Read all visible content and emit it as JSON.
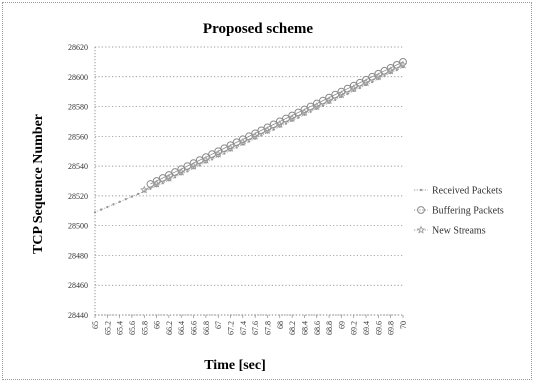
{
  "chart_data": {
    "type": "line",
    "title": "Proposed scheme",
    "xlabel": "Time [sec]",
    "ylabel": "TCP Sequence Number",
    "xlim": [
      65,
      70
    ],
    "ylim": [
      28440,
      28620
    ],
    "y_ticks": [
      "28620",
      "28600",
      "28580",
      "28560",
      "28540",
      "28520",
      "28500",
      "28480",
      "28460",
      "28440"
    ],
    "x_ticks": [
      "65",
      "65.2",
      "65.4",
      "65.6",
      "65.8",
      "66",
      "66.2",
      "66.4",
      "66.6",
      "66.8",
      "67",
      "67.2",
      "67.4",
      "67.6",
      "67.8",
      "68",
      "68.2",
      "68.4",
      "68.6",
      "68.8",
      "69",
      "69.2",
      "69.4",
      "69.6",
      "69.8",
      "70"
    ],
    "grid": "dotted horizontal",
    "legend_position": "right",
    "series": [
      {
        "name": "Received Packets",
        "marker": "small-dot",
        "color": "#9a9a9a",
        "x": [
          65,
          65.1,
          65.2,
          65.3,
          65.4,
          65.5,
          65.6,
          65.7,
          65.8,
          65.9,
          66,
          66.1,
          66.2,
          66.3,
          66.4,
          66.5,
          66.6,
          66.7,
          66.8,
          66.9,
          67,
          67.1,
          67.2,
          67.3,
          67.4,
          67.5,
          67.6,
          67.7,
          67.8,
          67.9,
          68,
          68.1,
          68.2,
          68.3,
          68.4,
          68.5,
          68.6,
          68.7,
          68.8,
          68.9,
          69,
          69.1,
          69.2,
          69.3,
          69.4,
          69.5,
          69.6,
          69.7,
          69.8,
          69.9,
          70
        ],
        "y": [
          28509,
          28510.8,
          28512.5,
          28514.3,
          28516,
          28517.8,
          28519.5,
          28521.3,
          28523,
          28524.8,
          28526.5,
          28528.5,
          28530.5,
          28532.5,
          28534.5,
          28536.5,
          28538.5,
          28540.5,
          28542.5,
          28544.5,
          28546.5,
          28548.5,
          28550.5,
          28552.5,
          28554.5,
          28556.5,
          28558.5,
          28560.5,
          28562.5,
          28564.5,
          28566.5,
          28568.5,
          28570.5,
          28572.5,
          28574.5,
          28576.5,
          28578.5,
          28580.5,
          28582.5,
          28584.5,
          28586.5,
          28588.5,
          28590.5,
          28592.5,
          28594.5,
          28596.5,
          28598.5,
          28600.5,
          28602.5,
          28604.5,
          28606.5
        ]
      },
      {
        "name": "Buffering Packets",
        "marker": "circle",
        "color": "#8a8a8a",
        "x": [
          65.9,
          66,
          66.1,
          66.2,
          66.3,
          66.4,
          66.5,
          66.6,
          66.7,
          66.8,
          66.9,
          67,
          67.1,
          67.2,
          67.3,
          67.4,
          67.5,
          67.6,
          67.7,
          67.8,
          67.9,
          68,
          68.1,
          68.2,
          68.3,
          68.4,
          68.5,
          68.6,
          68.7,
          68.8,
          68.9,
          69,
          69.1,
          69.2,
          69.3,
          69.4,
          69.5,
          69.6,
          69.7,
          69.8,
          69.9,
          70
        ],
        "y": [
          28528,
          28530,
          28532,
          28534,
          28536,
          28538,
          28540,
          28542,
          28544,
          28546,
          28548,
          28550,
          28552,
          28554,
          28556,
          28558,
          28560,
          28562,
          28564,
          28566,
          28568,
          28570,
          28572,
          28574,
          28576,
          28578,
          28580,
          28582,
          28584,
          28586,
          28588,
          28590,
          28592,
          28594,
          28596,
          28598,
          28600,
          28602,
          28604,
          28606,
          28608,
          28610
        ]
      },
      {
        "name": "New Streams",
        "marker": "star",
        "color": "#9a9a9a",
        "x": [
          65.8,
          66,
          66.2,
          66.4,
          66.6,
          66.8,
          67,
          67.2,
          67.4,
          67.6,
          67.8,
          68,
          68.2,
          68.4,
          68.6,
          68.8,
          69,
          69.2,
          69.4,
          69.6,
          69.8,
          70
        ],
        "y": [
          28524,
          28528,
          28532,
          28536,
          28540,
          28544,
          28548,
          28552,
          28556,
          28560,
          28564,
          28568,
          28572,
          28576,
          28580,
          28584,
          28588,
          28592,
          28596,
          28600,
          28604,
          28608
        ]
      }
    ]
  }
}
